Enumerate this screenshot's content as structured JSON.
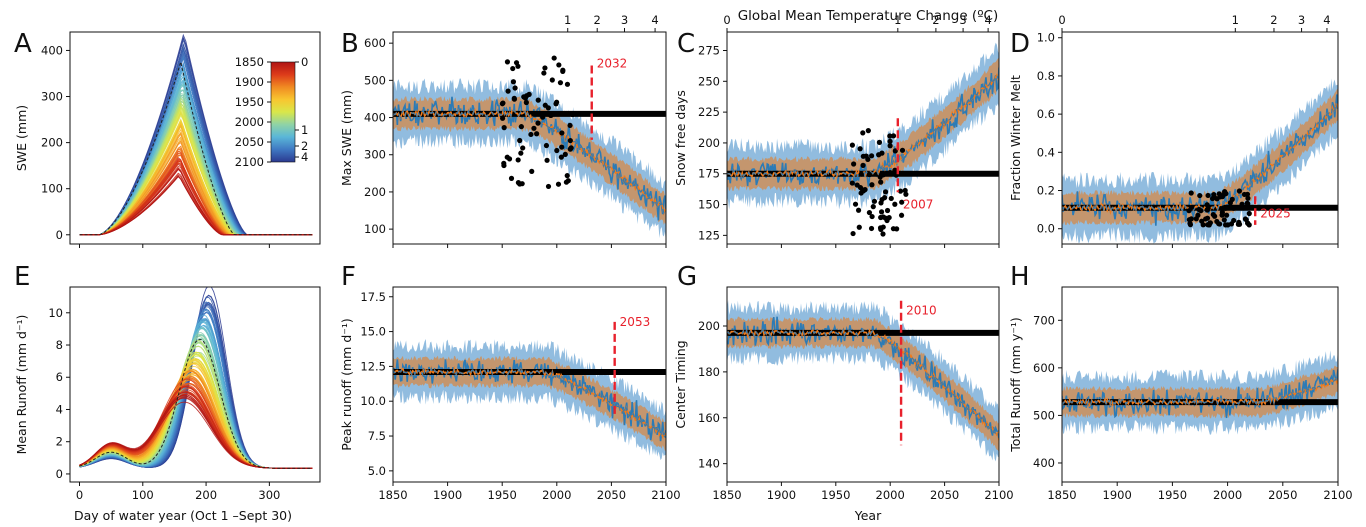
{
  "figure": {
    "top_axis_title": "Global Mean Temperature Change (ºC)",
    "year_label": "Year",
    "day_label": "Day of water year (Oct 1 –Sept 30)"
  },
  "colors": {
    "spread_outer": "#91bcdf",
    "spread_inner": "#c4966e",
    "series_blue": "#2c7bb6",
    "series_orange": "#f07a1a",
    "threshold": "#000000",
    "emergence": "#e8212c",
    "observations": "#000000"
  },
  "chart_data": [
    {
      "panel": "A",
      "type": "line",
      "description_series": "SWE climatology curves by year, colored by year",
      "xlabel": "",
      "ylabel": "SWE (mm)",
      "xlim": [
        -15,
        380
      ],
      "ylim": [
        -20,
        440
      ],
      "yticks": [
        0,
        100,
        200,
        300,
        400
      ],
      "x_tick_marks": [
        0,
        100,
        200,
        300
      ],
      "peak_day_early": 165,
      "peak_value_early": 430,
      "peak_value_late": 130,
      "colorbar": {
        "ticks_left": [
          "1850",
          "1900",
          "1950",
          "2000",
          "2050",
          "2100"
        ],
        "ticks_right": [
          "0",
          "1",
          "2",
          "4"
        ],
        "stops": [
          "#2b3a90",
          "#3f78c2",
          "#5ab6d8",
          "#8fd3a6",
          "#d9e74a",
          "#f8c630",
          "#f08a22",
          "#dd3b1a",
          "#b01414"
        ]
      }
    },
    {
      "panel": "B",
      "type": "line",
      "ylabel": "Max SWE (mm)",
      "xlim": [
        1850,
        2100
      ],
      "ylim": [
        60,
        630
      ],
      "xticks": [
        1850,
        1900,
        1950,
        2000,
        2050,
        2100
      ],
      "yticks": [
        100,
        200,
        300,
        400,
        500,
        600
      ],
      "top_ticks": [
        "1",
        "2",
        "3",
        "4"
      ],
      "baseline": 410,
      "end_value": 150,
      "decline_start": 1970,
      "threshold": 410,
      "emergence_year": 2032,
      "emergence_label": "2032",
      "obs_years": [
        1950,
        2015
      ],
      "obs_range": [
        210,
        560
      ]
    },
    {
      "panel": "C",
      "type": "line",
      "ylabel": "Snow free days",
      "xlim": [
        1850,
        2100
      ],
      "ylim": [
        118,
        290
      ],
      "xticks": [
        1850,
        1900,
        1950,
        2000,
        2050,
        2100
      ],
      "yticks": [
        125,
        150,
        175,
        200,
        225,
        250,
        275
      ],
      "top_ticks": [
        "0",
        "1",
        "2",
        "3",
        "4"
      ],
      "baseline": 175,
      "end_value": 255,
      "decline_start": 1985,
      "threshold": 175,
      "emergence_year": 2007,
      "emergence_label": "2007",
      "obs_years": [
        1965,
        2015
      ],
      "obs_range": [
        125,
        210
      ]
    },
    {
      "panel": "D",
      "type": "line",
      "ylabel": "Fraction Winter Melt",
      "xlim": [
        1850,
        2100
      ],
      "ylim": [
        -0.08,
        1.03
      ],
      "xticks": [
        1850,
        1900,
        1950,
        2000,
        2050,
        2100
      ],
      "yticks": [
        0.0,
        0.2,
        0.4,
        0.6,
        0.8,
        1.0
      ],
      "top_ticks": [
        "0",
        "1",
        "2",
        "3",
        "4"
      ],
      "baseline": 0.11,
      "end_value": 0.65,
      "decline_start": 1990,
      "threshold": 0.11,
      "emergence_year": 2025,
      "emergence_label": "2025",
      "obs_years": [
        1965,
        2020
      ],
      "obs_range": [
        0.02,
        0.2
      ]
    },
    {
      "panel": "E",
      "type": "line",
      "xlabel": "Day of water year (Oct 1 –Sept 30)",
      "ylabel": "Mean Runoff (mm d⁻¹)",
      "xlim": [
        -15,
        380
      ],
      "ylim": [
        -0.5,
        11.6
      ],
      "xticks": [
        0,
        100,
        200,
        300
      ],
      "yticks": [
        0,
        2,
        4,
        6,
        8,
        10
      ],
      "peak_day_early": 205,
      "peak_value_early": 11,
      "peak_day_late": 165,
      "peak_value_late": 4.3
    },
    {
      "panel": "F",
      "type": "line",
      "ylabel": "Peak runoff (mm d⁻¹)",
      "xlim": [
        1850,
        2100
      ],
      "ylim": [
        4.2,
        18.2
      ],
      "xticks": [
        1850,
        1900,
        1950,
        2000,
        2050,
        2100
      ],
      "yticks": [
        5.0,
        7.5,
        10.0,
        12.5,
        15.0,
        17.5
      ],
      "baseline": 12.1,
      "end_value": 7.5,
      "decline_start": 1990,
      "threshold": 12.1,
      "emergence_year": 2053,
      "emergence_label": "2053"
    },
    {
      "panel": "G",
      "type": "line",
      "ylabel": "Center Timing",
      "xlim": [
        1850,
        2100
      ],
      "ylim": [
        132,
        217
      ],
      "xticks": [
        1850,
        1900,
        1950,
        2000,
        2050,
        2100
      ],
      "yticks": [
        140,
        160,
        180,
        200
      ],
      "baseline": 197,
      "end_value": 152,
      "decline_start": 1985,
      "threshold": 197,
      "emergence_year": 2010,
      "emergence_label": "2010"
    },
    {
      "panel": "H",
      "type": "line",
      "ylabel": "Total Runoff (mm y⁻¹)",
      "xlim": [
        1850,
        2100
      ],
      "ylim": [
        360,
        770
      ],
      "xticks": [
        1850,
        1900,
        1950,
        2000,
        2050,
        2100
      ],
      "yticks": [
        400,
        500,
        600,
        700
      ],
      "baseline": 528,
      "end_value": 575,
      "decline_start": 2030,
      "threshold": 528
    }
  ]
}
